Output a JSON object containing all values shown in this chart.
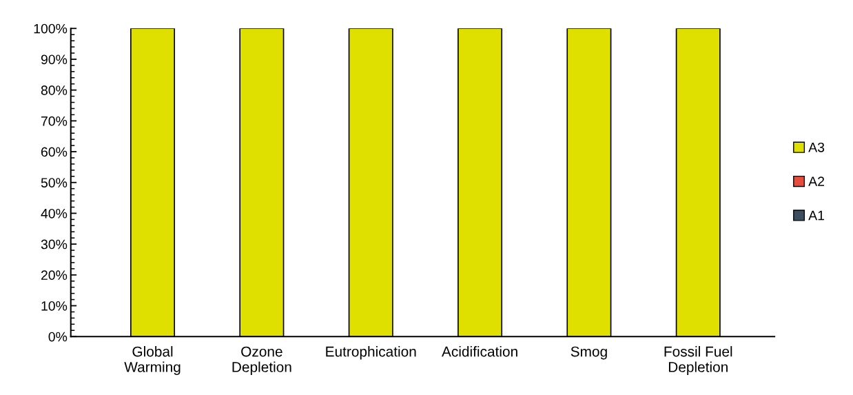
{
  "chart_data": {
    "type": "bar",
    "stacked": true,
    "categories": [
      "Global\nWarming",
      "Ozone\nDepletion",
      "Eutrophication",
      "Acidification",
      "Smog",
      "Fossil Fuel\nDepletion"
    ],
    "series": [
      {
        "name": "A1",
        "color": "#3d4f5f",
        "values": [
          0,
          0,
          0,
          0,
          0,
          0
        ]
      },
      {
        "name": "A2",
        "color": "#e84c3d",
        "values": [
          0,
          0,
          0,
          0,
          0,
          0
        ]
      },
      {
        "name": "A3",
        "color": "#e0e000",
        "values": [
          100,
          100,
          100,
          100,
          100,
          100
        ]
      }
    ],
    "ylim": [
      0,
      100
    ],
    "yticks": [
      {
        "value": 0,
        "label": "0%"
      },
      {
        "value": 10,
        "label": "10%"
      },
      {
        "value": 20,
        "label": "20%"
      },
      {
        "value": 30,
        "label": "30%"
      },
      {
        "value": 40,
        "label": "40%"
      },
      {
        "value": 50,
        "label": "50%"
      },
      {
        "value": 60,
        "label": "60%"
      },
      {
        "value": 70,
        "label": "70%"
      },
      {
        "value": 80,
        "label": "80%"
      },
      {
        "value": 90,
        "label": "90%"
      },
      {
        "value": 100,
        "label": "100%"
      }
    ],
    "grid": false,
    "legend": "right"
  }
}
